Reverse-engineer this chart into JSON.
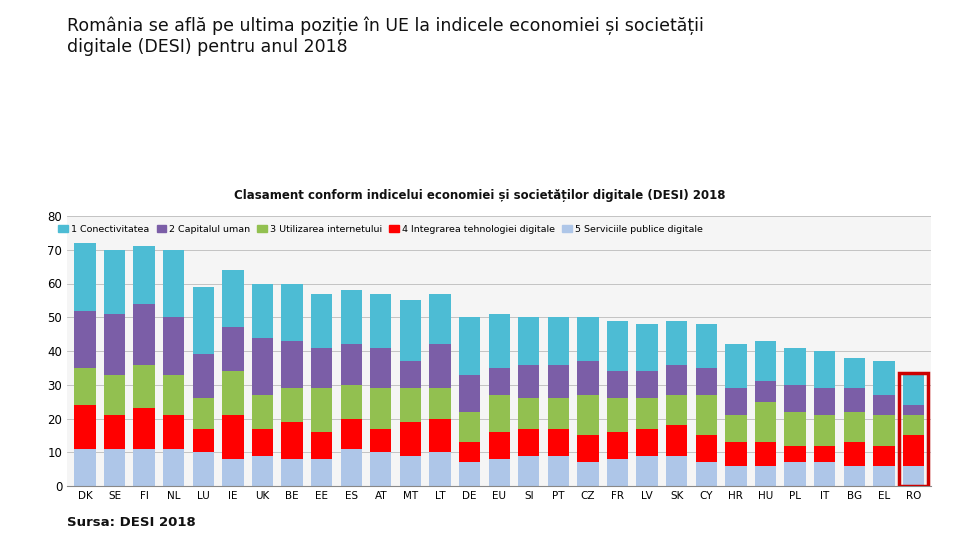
{
  "title_main": "România se află pe ultima poziție în UE la indicele economiei și societății\ndigitale (DESI) pentru anul 2018",
  "chart_title": "Clasament conform indicelui economiei și societăților digitale (DESI) 2018",
  "source_text": "Sursa: DESI 2018",
  "categories": [
    "DK",
    "SE",
    "FI",
    "NL",
    "LU",
    "IE",
    "UK",
    "BE",
    "EE",
    "ES",
    "AT",
    "MT",
    "LT",
    "DE",
    "EU",
    "SI",
    "PT",
    "CZ",
    "FR",
    "LV",
    "SK",
    "CY",
    "HR",
    "HU",
    "PL",
    "IT",
    "BG",
    "EL",
    "RO"
  ],
  "legend_labels": [
    "1 Conectivitatea",
    "2 Capitalul uman",
    "3 Utilizarea internetului",
    "4 Integrarea tehnologiei digitale",
    "5 Serviciile publice digitale"
  ],
  "series_order": [
    "serviciile_publice",
    "integrarea_tehnologiei",
    "utilizarea_internetului",
    "capitalul_uman",
    "conectivitatea"
  ],
  "colors_order": [
    "#aec6e8",
    "#ff0000",
    "#92c050",
    "#7b5ea7",
    "#4dbcd4"
  ],
  "legend_colors": [
    "#4dbcd4",
    "#7b5ea7",
    "#92c050",
    "#ff0000",
    "#aec6e8"
  ],
  "data": {
    "conectivitatea": [
      20,
      19,
      17,
      20,
      20,
      17,
      16,
      17,
      16,
      16,
      16,
      18,
      15,
      17,
      16,
      14,
      14,
      13,
      15,
      14,
      13,
      13,
      13,
      12,
      11,
      11,
      9,
      10,
      9
    ],
    "capitalul_uman": [
      17,
      18,
      18,
      17,
      13,
      13,
      17,
      14,
      12,
      12,
      12,
      8,
      13,
      11,
      8,
      10,
      10,
      10,
      8,
      8,
      9,
      8,
      8,
      6,
      8,
      8,
      7,
      6,
      3
    ],
    "utilizarea_internetului": [
      11,
      12,
      13,
      12,
      9,
      13,
      10,
      10,
      13,
      10,
      12,
      10,
      9,
      9,
      11,
      9,
      9,
      12,
      10,
      9,
      9,
      12,
      8,
      12,
      10,
      9,
      9,
      9,
      6
    ],
    "integrarea_tehnologiei": [
      13,
      10,
      12,
      10,
      7,
      13,
      8,
      11,
      8,
      9,
      7,
      10,
      10,
      6,
      8,
      8,
      8,
      8,
      8,
      8,
      9,
      8,
      7,
      7,
      5,
      5,
      7,
      6,
      9
    ],
    "serviciile_publice": [
      11,
      11,
      11,
      11,
      10,
      8,
      9,
      8,
      8,
      11,
      10,
      9,
      10,
      7,
      8,
      9,
      9,
      7,
      8,
      9,
      9,
      7,
      6,
      6,
      7,
      7,
      6,
      6,
      6
    ]
  },
  "ylim": [
    0,
    80
  ],
  "yticks": [
    0,
    10,
    20,
    30,
    40,
    50,
    60,
    70,
    80
  ],
  "background_color": "#ffffff",
  "highlight_country": "RO",
  "highlight_color": "#cc0000",
  "chart_bg": "#f5f5f5"
}
